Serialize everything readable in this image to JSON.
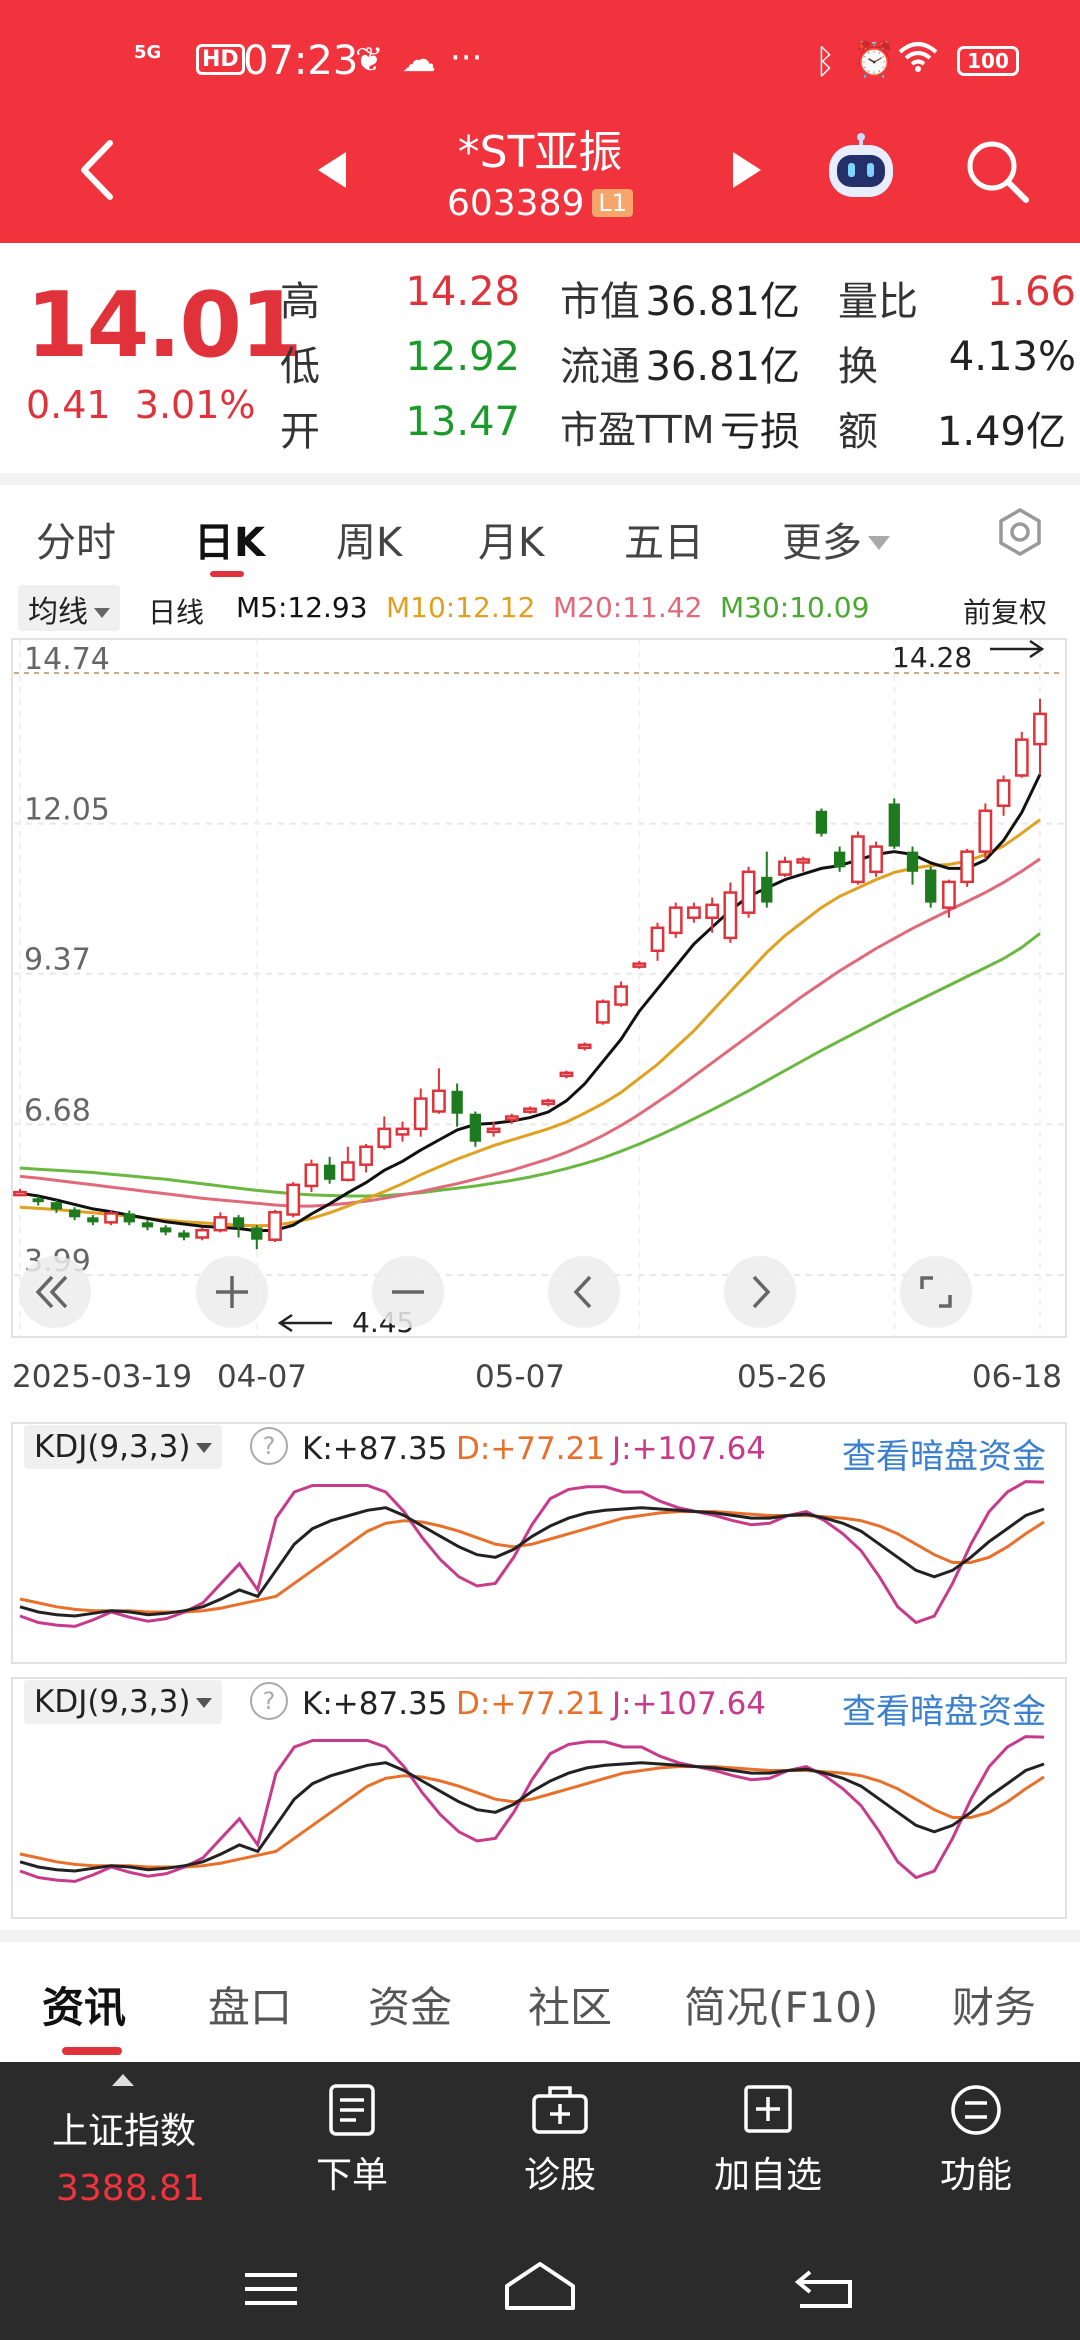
{
  "status_bar": {
    "signal": "5G",
    "hd": "HD",
    "time": "07:23",
    "dots": "···",
    "battery": "100"
  },
  "header": {
    "stock_name": "*ST亚振",
    "stock_code": "603389",
    "level": "L1"
  },
  "quote": {
    "price": "14.01",
    "change": "0.41",
    "change_pct": "3.01%",
    "high_label": "高",
    "high": "14.28",
    "low_label": "低",
    "low": "12.92",
    "open_label": "开",
    "open": "13.47",
    "mktcap_label": "市值",
    "mktcap": "36.81亿",
    "float_label": "流通",
    "float": "36.81亿",
    "pe_label": "市盈TTM",
    "pe": "亏损",
    "vol_ratio_label": "量比",
    "vol_ratio": "1.66",
    "turnover_label": "换",
    "turnover": "4.13%",
    "amount_label": "额",
    "amount": "1.49亿"
  },
  "period_tabs": {
    "fenshi": "分时",
    "day": "日K",
    "week": "周K",
    "month": "月K",
    "fiveday": "五日",
    "more": "更多"
  },
  "ma_row": {
    "select": "均线",
    "type": "日线",
    "m5": "M5:12.93",
    "m10": "M10:12.12",
    "m20": "M20:11.42",
    "m30": "M30:10.09",
    "adjust": "前复权"
  },
  "colors": {
    "up": "#e0323a",
    "down": "#1e7a1e",
    "m5": "#111111",
    "m10": "#e0a020",
    "m20": "#e06a7a",
    "m30": "#6ab840",
    "kdj_k": "#222222",
    "kdj_d": "#e8702a",
    "kdj_j": "#c83a8a"
  },
  "chart_data": {
    "type": "candlestick",
    "y_ticks": [
      "14.74",
      "12.05",
      "9.37",
      "6.68",
      "3.99"
    ],
    "ylim": [
      3.99,
      14.74
    ],
    "x_labels": [
      "2025-03-19",
      "04-07",
      "05-07",
      "05-26",
      "06-18"
    ],
    "max_label": "14.28",
    "min_label": "4.45",
    "candles": [
      [
        5.43,
        5.47,
        5.53,
        5.4
      ],
      [
        5.36,
        5.29,
        5.4,
        5.23
      ],
      [
        5.29,
        5.16,
        5.33,
        5.1
      ],
      [
        5.16,
        5.02,
        5.2,
        4.97
      ],
      [
        5.02,
        4.93,
        5.06,
        4.88
      ],
      [
        4.93,
        5.09,
        5.14,
        4.88
      ],
      [
        5.09,
        4.93,
        5.14,
        4.88
      ],
      [
        4.93,
        4.84,
        4.97,
        4.79
      ],
      [
        4.84,
        4.75,
        4.88,
        4.7
      ],
      [
        4.75,
        4.66,
        4.79,
        4.61
      ],
      [
        4.66,
        4.79,
        4.84,
        4.61
      ],
      [
        4.79,
        5.02,
        5.11,
        4.75
      ],
      [
        5.02,
        4.84,
        5.06,
        4.66
      ],
      [
        4.84,
        4.62,
        4.88,
        4.45
      ],
      [
        4.62,
        5.11,
        5.15,
        4.58
      ],
      [
        5.07,
        5.6,
        5.65,
        5.02
      ],
      [
        5.58,
        5.96,
        6.05,
        5.47
      ],
      [
        5.96,
        5.69,
        6.1,
        5.62
      ],
      [
        5.69,
        6.0,
        6.28,
        5.66
      ],
      [
        5.96,
        6.28,
        6.33,
        5.82
      ],
      [
        6.28,
        6.6,
        6.82,
        6.23
      ],
      [
        6.5,
        6.6,
        6.73,
        6.37
      ],
      [
        6.6,
        7.14,
        7.32,
        6.46
      ],
      [
        6.91,
        7.28,
        7.68,
        6.87
      ],
      [
        7.28,
        6.87,
        7.41,
        6.64
      ],
      [
        6.87,
        6.37,
        6.91,
        6.28
      ],
      [
        6.6,
        6.6,
        6.73,
        6.46
      ],
      [
        6.78,
        6.82,
        6.87,
        6.69
      ],
      [
        6.91,
        6.96,
        7.0,
        6.87
      ],
      [
        7.05,
        7.1,
        7.14,
        7.0
      ],
      [
        7.55,
        7.6,
        7.64,
        7.5
      ],
      [
        8.05,
        8.1,
        8.14,
        8.0
      ],
      [
        8.5,
        8.87,
        8.91,
        8.46
      ],
      [
        8.82,
        9.14,
        9.23,
        8.78
      ],
      [
        9.51,
        9.55,
        9.6,
        9.46
      ],
      [
        9.78,
        10.19,
        10.28,
        9.6
      ],
      [
        10.1,
        10.55,
        10.64,
        10.01
      ],
      [
        10.37,
        10.55,
        10.64,
        10.28
      ],
      [
        10.37,
        10.6,
        10.73,
        10.1
      ],
      [
        10.01,
        10.82,
        11.0,
        9.92
      ],
      [
        10.46,
        11.19,
        11.28,
        10.37
      ],
      [
        11.1,
        10.64,
        11.55,
        10.55
      ],
      [
        11.14,
        11.37,
        11.46,
        11.1
      ],
      [
        11.37,
        11.41,
        11.46,
        11.19
      ],
      [
        12.28,
        11.87,
        12.32,
        11.82
      ],
      [
        11.55,
        11.27,
        11.64,
        11.19
      ],
      [
        11.01,
        11.82,
        11.91,
        10.96
      ],
      [
        11.19,
        11.64,
        11.73,
        11.1
      ],
      [
        12.41,
        11.64,
        12.5,
        11.6
      ],
      [
        11.55,
        11.19,
        11.64,
        10.96
      ],
      [
        11.23,
        10.64,
        11.28,
        10.55
      ],
      [
        10.55,
        11.01,
        11.05,
        10.37
      ],
      [
        11.01,
        11.55,
        11.6,
        10.92
      ],
      [
        11.55,
        12.28,
        12.41,
        11.41
      ],
      [
        12.37,
        12.82,
        12.91,
        12.19
      ],
      [
        12.91,
        13.55,
        13.69,
        12.87
      ],
      [
        13.47,
        14.01,
        14.28,
        12.92
      ]
    ],
    "series": [
      {
        "name": "M5",
        "values": [
          5.45,
          5.4,
          5.33,
          5.25,
          5.17,
          5.12,
          5.06,
          5.0,
          4.94,
          4.9,
          4.86,
          4.84,
          4.82,
          4.78,
          4.79,
          4.88,
          5.08,
          5.26,
          5.46,
          5.64,
          5.86,
          6.02,
          6.22,
          6.4,
          6.58,
          6.68,
          6.7,
          6.74,
          6.8,
          6.9,
          7.1,
          7.4,
          7.8,
          8.2,
          8.7,
          9.1,
          9.5,
          9.9,
          10.2,
          10.5,
          10.75,
          10.9,
          11.05,
          11.15,
          11.25,
          11.3,
          11.4,
          11.5,
          11.55,
          11.5,
          11.35,
          11.25,
          11.25,
          11.4,
          11.75,
          12.25,
          12.93
        ]
      },
      {
        "name": "M10",
        "values": [
          5.2,
          5.18,
          5.16,
          5.13,
          5.1,
          5.07,
          5.04,
          5.0,
          4.97,
          4.94,
          4.92,
          4.9,
          4.88,
          4.87,
          4.88,
          4.93,
          5.0,
          5.1,
          5.22,
          5.35,
          5.48,
          5.62,
          5.78,
          5.92,
          6.06,
          6.18,
          6.3,
          6.4,
          6.5,
          6.6,
          6.72,
          6.88,
          7.05,
          7.25,
          7.5,
          7.75,
          8.05,
          8.35,
          8.7,
          9.05,
          9.4,
          9.75,
          10.05,
          10.3,
          10.55,
          10.75,
          10.9,
          11.05,
          11.18,
          11.25,
          11.3,
          11.32,
          11.38,
          11.5,
          11.65,
          11.88,
          12.12
        ]
      },
      {
        "name": "M20",
        "values": [
          5.75,
          5.72,
          5.68,
          5.64,
          5.6,
          5.56,
          5.52,
          5.48,
          5.44,
          5.4,
          5.36,
          5.33,
          5.3,
          5.27,
          5.24,
          5.22,
          5.22,
          5.24,
          5.27,
          5.31,
          5.36,
          5.42,
          5.48,
          5.55,
          5.62,
          5.7,
          5.78,
          5.86,
          5.96,
          6.06,
          6.18,
          6.32,
          6.48,
          6.66,
          6.86,
          7.08,
          7.3,
          7.54,
          7.78,
          8.02,
          8.26,
          8.5,
          8.74,
          8.98,
          9.2,
          9.42,
          9.62,
          9.82,
          10.0,
          10.18,
          10.34,
          10.5,
          10.66,
          10.82,
          11.0,
          11.2,
          11.42
        ]
      },
      {
        "name": "M30",
        "values": [
          5.9,
          5.88,
          5.86,
          5.84,
          5.82,
          5.79,
          5.76,
          5.73,
          5.7,
          5.66,
          5.62,
          5.58,
          5.54,
          5.5,
          5.47,
          5.44,
          5.42,
          5.41,
          5.4,
          5.4,
          5.41,
          5.43,
          5.46,
          5.5,
          5.54,
          5.58,
          5.63,
          5.68,
          5.74,
          5.81,
          5.89,
          5.98,
          6.08,
          6.2,
          6.33,
          6.47,
          6.62,
          6.78,
          6.94,
          7.11,
          7.28,
          7.46,
          7.64,
          7.82,
          8.0,
          8.17,
          8.34,
          8.51,
          8.68,
          8.84,
          9.0,
          9.16,
          9.32,
          9.48,
          9.64,
          9.84,
          10.09
        ]
      }
    ]
  },
  "kdj": {
    "label": "KDJ(9,3,3)",
    "help": "?",
    "k": "K:+87.35",
    "d": "D:+77.21",
    "j": "J:+107.64",
    "link": "查看暗盘资金",
    "k_values": [
      12,
      8,
      6,
      5,
      7,
      9,
      8,
      6,
      7,
      9,
      12,
      18,
      25,
      20,
      40,
      60,
      72,
      78,
      82,
      86,
      88,
      82,
      74,
      66,
      58,
      52,
      50,
      56,
      66,
      74,
      80,
      84,
      86,
      87,
      88,
      87,
      86,
      85,
      84,
      82,
      80,
      80,
      82,
      83,
      80,
      76,
      70,
      60,
      50,
      40,
      35,
      40,
      50,
      62,
      72,
      82,
      87
    ],
    "d_values": [
      18,
      15,
      12,
      10,
      9,
      9,
      9,
      8,
      8,
      8,
      9,
      11,
      14,
      17,
      20,
      30,
      40,
      50,
      60,
      70,
      76,
      78,
      77,
      74,
      70,
      65,
      60,
      58,
      60,
      64,
      68,
      72,
      76,
      80,
      82,
      84,
      85,
      85,
      85,
      84,
      83,
      82,
      82,
      82,
      81,
      80,
      78,
      74,
      68,
      60,
      52,
      46,
      46,
      50,
      58,
      68,
      77
    ],
    "j_values": [
      5,
      0,
      -2,
      -3,
      2,
      8,
      4,
      1,
      3,
      8,
      15,
      30,
      45,
      25,
      80,
      100,
      105,
      105,
      105,
      105,
      100,
      85,
      65,
      48,
      35,
      28,
      30,
      50,
      75,
      95,
      102,
      104,
      104,
      100,
      100,
      93,
      88,
      85,
      82,
      78,
      75,
      76,
      82,
      85,
      78,
      68,
      55,
      35,
      12,
      0,
      5,
      30,
      60,
      85,
      100,
      108,
      107.64
    ]
  },
  "info_tabs": [
    "资讯",
    "盘口",
    "资金",
    "社区",
    "简况(F10)",
    "财务"
  ],
  "action_bar": {
    "index_name": "上证指数",
    "index_value": "3388.81",
    "order": "下单",
    "diagnose": "诊股",
    "add_watch": "加自选",
    "functions": "功能"
  }
}
